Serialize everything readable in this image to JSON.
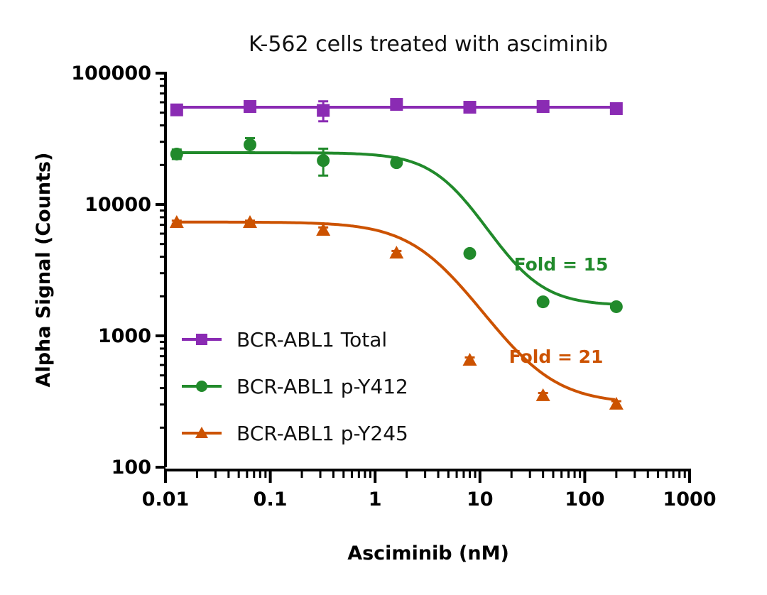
{
  "chart_data": {
    "type": "line",
    "title": "K-562 cells treated with asciminib",
    "xlabel": "Asciminib (nM)",
    "ylabel": "Alpha Signal (Counts)",
    "xscale": "log",
    "yscale": "log",
    "xlim": [
      0.01,
      1000
    ],
    "ylim": [
      100,
      100000
    ],
    "xticks": [
      "0.01",
      "0.1",
      "1",
      "10",
      "100",
      "1000"
    ],
    "yticks": [
      "100",
      "1000",
      "10000",
      "100000"
    ],
    "grid": false,
    "legend_position": "bottom-left",
    "x": [
      0.0128,
      0.064,
      0.32,
      1.6,
      8,
      40,
      200
    ],
    "series": [
      {
        "name": "BCR-ABL1 Total",
        "color": "#8a2bb3",
        "marker": "square",
        "values": [
          52500,
          55700,
          52000,
          57800,
          55000,
          55700,
          53700
        ],
        "error": [
          3000,
          4000,
          9000,
          2000,
          1500,
          3000,
          3500
        ]
      },
      {
        "name": "BCR-ABL1 p-Y412",
        "color": "#218a2b",
        "marker": "circle",
        "values": [
          24200,
          28500,
          21600,
          20800,
          4240,
          1815,
          1667
        ],
        "error": [
          2000,
          3500,
          5000,
          800,
          200,
          80,
          60
        ]
      },
      {
        "name": "BCR-ABL1 p-Y245",
        "color": "#cc5200",
        "marker": "triangle",
        "values": [
          7330,
          7330,
          6390,
          4280,
          655,
          352,
          303
        ],
        "error": [
          200,
          200,
          300,
          150,
          30,
          15,
          15
        ]
      }
    ],
    "annotations": [
      {
        "text": "Fold = 15",
        "color": "#218a2b"
      },
      {
        "text": "Fold = 21",
        "color": "#cc5200"
      }
    ]
  }
}
